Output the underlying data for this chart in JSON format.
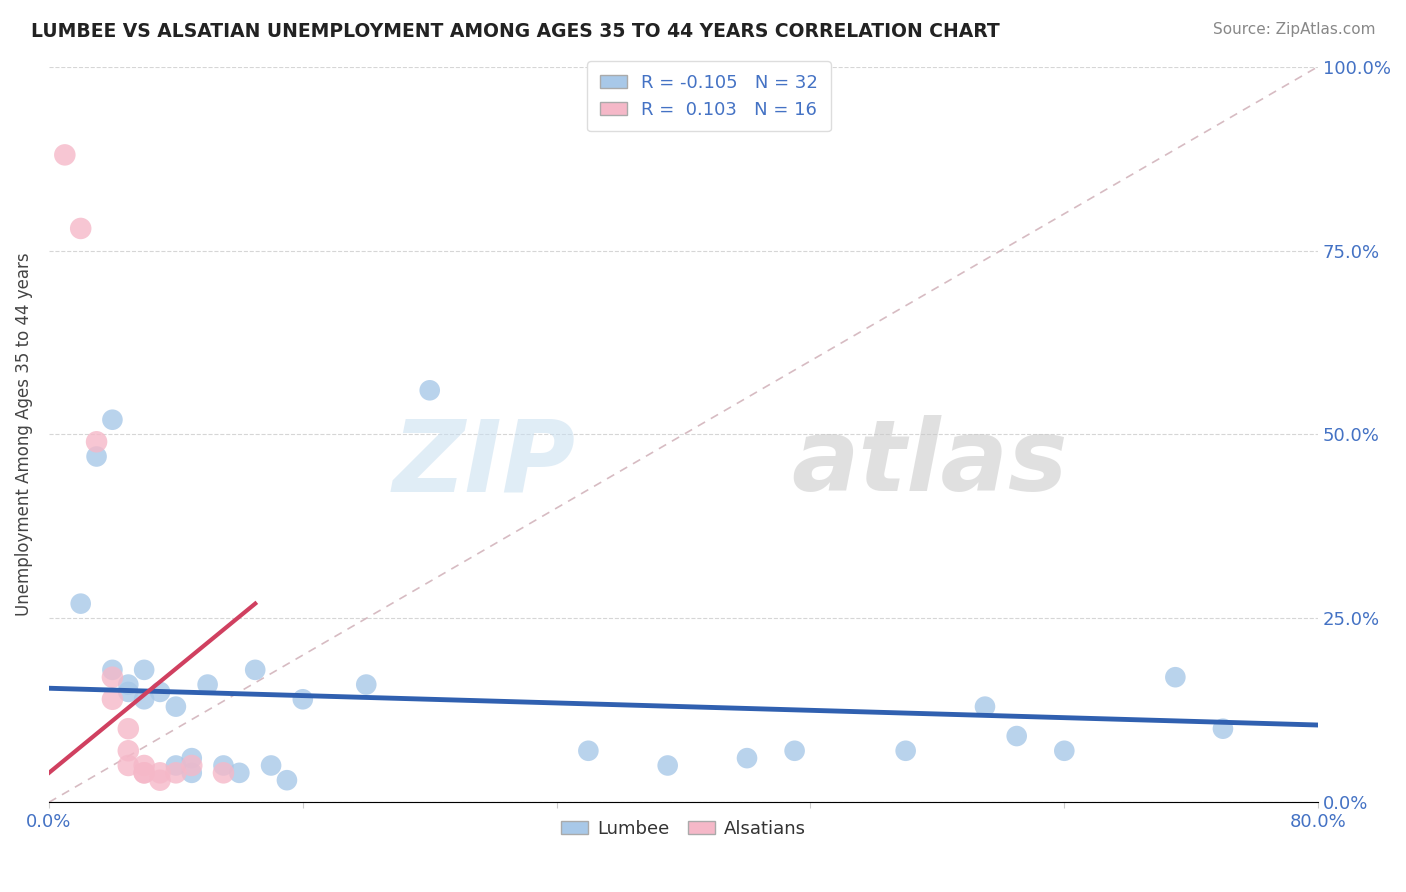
{
  "title": "LUMBEE VS ALSATIAN UNEMPLOYMENT AMONG AGES 35 TO 44 YEARS CORRELATION CHART",
  "source": "Source: ZipAtlas.com",
  "ylabel": "Unemployment Among Ages 35 to 44 years",
  "xlim": [
    0.0,
    0.8
  ],
  "ylim": [
    0.0,
    1.0
  ],
  "lumbee_color": "#a8c8e8",
  "alsatian_color": "#f5b8c8",
  "lumbee_line_color": "#3060b0",
  "alsatian_line_color": "#d04060",
  "identity_line_color": "#d0b0b8",
  "R_lumbee": -0.105,
  "N_lumbee": 32,
  "R_alsatian": 0.103,
  "N_alsatian": 16,
  "lumbee_points": [
    [
      0.02,
      0.27
    ],
    [
      0.03,
      0.47
    ],
    [
      0.04,
      0.52
    ],
    [
      0.04,
      0.18
    ],
    [
      0.05,
      0.15
    ],
    [
      0.05,
      0.16
    ],
    [
      0.06,
      0.14
    ],
    [
      0.06,
      0.18
    ],
    [
      0.07,
      0.15
    ],
    [
      0.08,
      0.13
    ],
    [
      0.08,
      0.05
    ],
    [
      0.09,
      0.06
    ],
    [
      0.09,
      0.04
    ],
    [
      0.1,
      0.16
    ],
    [
      0.11,
      0.05
    ],
    [
      0.12,
      0.04
    ],
    [
      0.13,
      0.18
    ],
    [
      0.14,
      0.05
    ],
    [
      0.15,
      0.03
    ],
    [
      0.16,
      0.14
    ],
    [
      0.2,
      0.16
    ],
    [
      0.24,
      0.56
    ],
    [
      0.34,
      0.07
    ],
    [
      0.39,
      0.05
    ],
    [
      0.44,
      0.06
    ],
    [
      0.47,
      0.07
    ],
    [
      0.54,
      0.07
    ],
    [
      0.59,
      0.13
    ],
    [
      0.61,
      0.09
    ],
    [
      0.64,
      0.07
    ],
    [
      0.71,
      0.17
    ],
    [
      0.74,
      0.1
    ]
  ],
  "alsatian_points": [
    [
      0.01,
      0.88
    ],
    [
      0.02,
      0.78
    ],
    [
      0.03,
      0.49
    ],
    [
      0.04,
      0.17
    ],
    [
      0.04,
      0.14
    ],
    [
      0.05,
      0.1
    ],
    [
      0.05,
      0.07
    ],
    [
      0.05,
      0.05
    ],
    [
      0.06,
      0.05
    ],
    [
      0.06,
      0.04
    ],
    [
      0.06,
      0.04
    ],
    [
      0.07,
      0.03
    ],
    [
      0.07,
      0.04
    ],
    [
      0.08,
      0.04
    ],
    [
      0.09,
      0.05
    ],
    [
      0.11,
      0.04
    ]
  ],
  "lumbee_regline": [
    0.0,
    0.8,
    0.155,
    0.105
  ],
  "alsatian_regline_x": [
    0.0,
    0.13
  ],
  "alsatian_regline_y": [
    0.04,
    0.27
  ]
}
